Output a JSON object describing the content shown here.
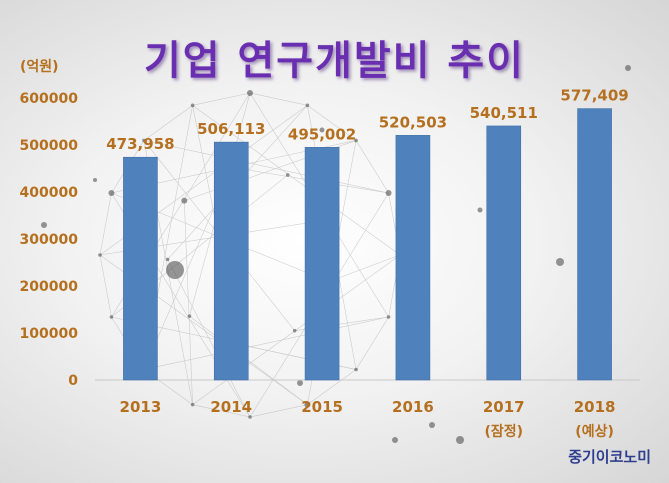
{
  "title": "기업 연구개발비 추이",
  "unit_label": "(억원)",
  "source": "중기이코노미",
  "colors": {
    "bar": "#4f81bd",
    "axis_label": "#b5701f",
    "data_label": "#b5701f",
    "title": "#6a2fb0",
    "source": "#2e3f8f"
  },
  "chart_data": {
    "type": "bar",
    "title": "기업 연구개발비 추이",
    "ylabel": "(억원)",
    "xlabel": "",
    "categories": [
      "2013",
      "2014",
      "2015",
      "2016",
      "2017",
      "2018"
    ],
    "category_notes": [
      "",
      "",
      "",
      "",
      "(잠정)",
      "(예상)"
    ],
    "values": [
      473958,
      506113,
      495002,
      520503,
      540511,
      577409
    ],
    "value_labels": [
      "473,958",
      "506,113",
      "495,002",
      "520,503",
      "540,511",
      "577,409"
    ],
    "ylim": [
      0,
      600000
    ],
    "yticks": [
      0,
      100000,
      200000,
      300000,
      400000,
      500000,
      600000
    ],
    "ytick_labels": [
      "0",
      "100000",
      "200000",
      "300000",
      "400000",
      "500000",
      "600000"
    ],
    "grid": false,
    "legend": "none"
  }
}
